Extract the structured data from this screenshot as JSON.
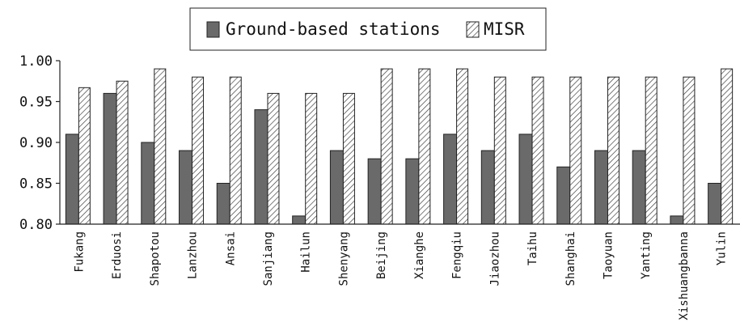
{
  "chart_data": {
    "type": "bar",
    "categories": [
      "Fukang",
      "Erduosi",
      "Shapotou",
      "Lanzhou",
      "Ansai",
      "Sanjiang",
      "Hailun",
      "Shenyang",
      "Beijing",
      "Xianghe",
      "Fengqiu",
      "Jiaozhou",
      "Taihu",
      "Shanghai",
      "Taoyuan",
      "Yanting",
      "Xishuangbanna",
      "Yulin"
    ],
    "series": [
      {
        "name": "Ground-based stations",
        "values": [
          0.91,
          0.96,
          0.9,
          0.89,
          0.85,
          0.94,
          0.81,
          0.89,
          0.88,
          0.88,
          0.91,
          0.89,
          0.91,
          0.87,
          0.89,
          0.89,
          0.81,
          0.85
        ],
        "color": "#6a6a6a",
        "pattern": "solid"
      },
      {
        "name": "MISR",
        "values": [
          0.967,
          0.975,
          0.99,
          0.98,
          0.98,
          0.96,
          0.96,
          0.96,
          0.99,
          0.99,
          0.99,
          0.98,
          0.98,
          0.98,
          0.98,
          0.98,
          0.98,
          0.99
        ],
        "color": "#ffffff",
        "pattern": "diagonal-hatch"
      }
    ],
    "yticks": [
      "0.80",
      "0.85",
      "0.90",
      "0.95",
      "1.00"
    ],
    "ylim": [
      0.8,
      1.0
    ],
    "grid": false,
    "legend_position": "top-center",
    "title": "",
    "xlabel": "",
    "ylabel": ""
  }
}
